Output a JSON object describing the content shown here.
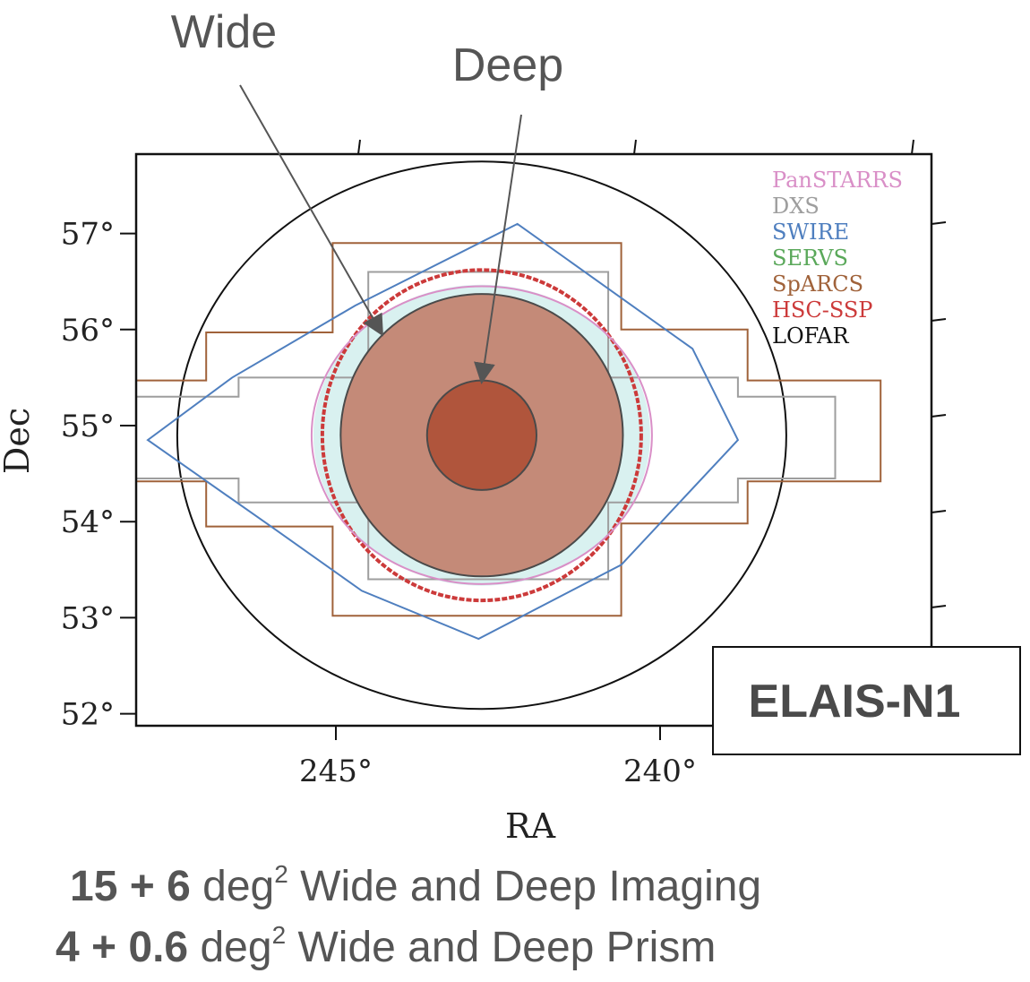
{
  "chart_data": {
    "type": "scatter",
    "title": "",
    "xlabel": "RA",
    "ylabel": "Dec",
    "x_ticks": [
      {
        "value": 245,
        "label": "245°"
      },
      {
        "value": 240,
        "label": "240°"
      }
    ],
    "y_ticks": [
      {
        "value": 57,
        "label": "57°"
      },
      {
        "value": 56,
        "label": "56°"
      },
      {
        "value": 55,
        "label": "55°"
      },
      {
        "value": 54,
        "label": "54°"
      },
      {
        "value": 53,
        "label": "53°"
      },
      {
        "value": 52,
        "label": "52°"
      }
    ],
    "legend": {
      "placement": "top-right",
      "entries": [
        {
          "name": "PanSTARRS",
          "color": "#d98fc7"
        },
        {
          "name": "DXS",
          "color": "#9e9e9e"
        },
        {
          "name": "SWIRE",
          "color": "#4f7fbf"
        },
        {
          "name": "SERVS",
          "color": "#5aa85a"
        },
        {
          "name": "SpARCS",
          "color": "#a0623a"
        },
        {
          "name": "HSC-SSP",
          "color": "#cc3a3a"
        },
        {
          "name": "LOFAR",
          "color": "#111111"
        }
      ]
    },
    "field_center": {
      "ra": 242.75,
      "dec": 54.9
    },
    "regions": [
      {
        "name": "Wide",
        "center": {
          "ra": 242.75,
          "dec": 54.9
        },
        "radius_dec": 1.47,
        "color": "#c48a78"
      },
      {
        "name": "Deep",
        "center": {
          "ra": 242.75,
          "dec": 54.9
        },
        "radius_dec": 0.57,
        "color": "#b0553c"
      }
    ],
    "footprints": {
      "LOFAR_circle": {
        "center": {
          "ra": 242.75,
          "dec": 54.9
        },
        "radius_dec": 2.85
      },
      "SpARCS": [
        [
          245.05,
          56.9
        ],
        [
          240.6,
          56.9
        ],
        [
          240.6,
          56.0
        ],
        [
          238.65,
          56.0
        ],
        [
          238.65,
          55.47
        ],
        [
          236.6,
          55.47
        ],
        [
          236.6,
          54.42
        ],
        [
          238.65,
          54.42
        ],
        [
          238.65,
          53.98
        ],
        [
          240.6,
          53.98
        ],
        [
          240.6,
          53.02
        ],
        [
          245.05,
          53.02
        ],
        [
          245.05,
          53.95
        ],
        [
          247.0,
          53.95
        ],
        [
          247.0,
          54.42
        ],
        [
          248.6,
          54.42
        ],
        [
          248.6,
          55.47
        ],
        [
          247.0,
          55.47
        ],
        [
          247.0,
          55.97
        ],
        [
          245.05,
          55.97
        ]
      ],
      "DXS": [
        [
          244.5,
          56.6
        ],
        [
          240.8,
          56.6
        ],
        [
          240.8,
          55.5
        ],
        [
          238.8,
          55.5
        ],
        [
          238.8,
          55.3
        ],
        [
          237.3,
          55.3
        ],
        [
          237.3,
          54.45
        ],
        [
          238.8,
          54.45
        ],
        [
          238.8,
          54.2
        ],
        [
          240.8,
          54.2
        ],
        [
          240.8,
          53.4
        ],
        [
          244.5,
          53.4
        ],
        [
          244.5,
          54.2
        ],
        [
          246.5,
          54.2
        ],
        [
          246.5,
          54.45
        ],
        [
          248.1,
          54.45
        ],
        [
          248.1,
          55.3
        ],
        [
          246.5,
          55.3
        ],
        [
          246.5,
          55.5
        ],
        [
          244.5,
          55.5
        ]
      ],
      "SWIRE": [
        [
          242.2,
          57.1
        ],
        [
          239.5,
          55.8
        ],
        [
          238.8,
          54.85
        ],
        [
          240.6,
          53.55
        ],
        [
          242.8,
          52.78
        ],
        [
          244.6,
          53.28
        ],
        [
          246.0,
          53.95
        ],
        [
          247.9,
          54.85
        ],
        [
          246.6,
          55.5
        ],
        [
          244.7,
          56.25
        ]
      ],
      "PanSTARRS_circle": {
        "center": {
          "ra": 242.75,
          "dec": 54.9
        },
        "radius_dec": 1.55
      },
      "HSC_SSP_circle": {
        "center": {
          "ra": 242.75,
          "dec": 54.9
        },
        "radius_dec": 1.72
      }
    },
    "annotations": [
      {
        "text": "Wide",
        "points_to": "Wide"
      },
      {
        "text": "Deep",
        "points_to": "Deep"
      },
      {
        "text": "ELAIS-N1"
      }
    ]
  },
  "caption": {
    "line1": {
      "bold": "15 + 6",
      "unit": "deg",
      "sup": "2",
      "rest": " Wide and Deep Imaging"
    },
    "line2": {
      "bold": "4 + 0.6",
      "unit": "deg",
      "sup": "2",
      "rest": " Wide and Deep Prism"
    }
  }
}
